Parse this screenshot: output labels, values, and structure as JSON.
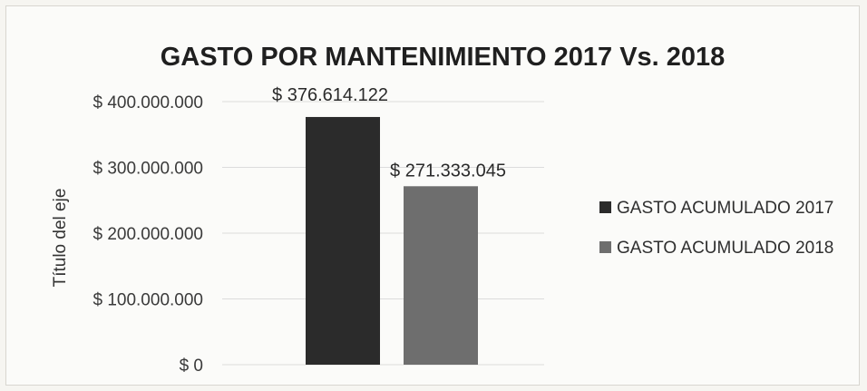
{
  "chart_data": {
    "type": "bar",
    "title": "GASTO POR MANTENIMIENTO 2017 Vs. 2018",
    "ylabel": "Título del eje",
    "xlabel": "",
    "ylim": [
      0,
      400000000
    ],
    "y_ticks": [
      0,
      100000000,
      200000000,
      300000000,
      400000000
    ],
    "y_tick_labels": [
      "$ 0",
      "$ 100.000.000",
      "$ 200.000.000",
      "$ 300.000.000",
      "$ 400.000.000"
    ],
    "grid": true,
    "legend_position": "right",
    "series": [
      {
        "name": "GASTO ACUMULADO 2017",
        "value": 376614122,
        "label": "$ 376.614.122",
        "color": "#2b2b2b"
      },
      {
        "name": "GASTO ACUMULADO 2018",
        "value": 271333045,
        "label": "$ 271.333.045",
        "color": "#6e6e6e"
      }
    ]
  }
}
